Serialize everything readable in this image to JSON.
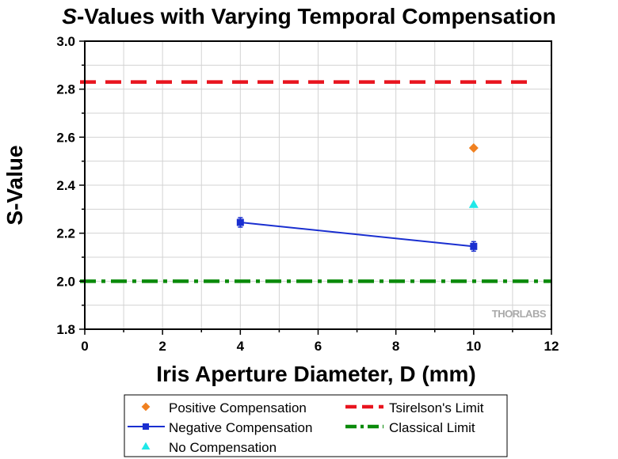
{
  "chart_data": {
    "type": "scatter",
    "title_italic": "S",
    "title_rest": "-Values with Varying Temporal Compensation",
    "xlabel": "Iris Aperture Diameter, D (mm)",
    "ylabel": "S-Value",
    "xlim": [
      0,
      12
    ],
    "ylim": [
      1.8,
      3.0
    ],
    "xticks": [
      "0",
      "2",
      "4",
      "6",
      "8",
      "10",
      "12"
    ],
    "yticks": [
      "1.8",
      "2.0",
      "2.2",
      "2.4",
      "2.6",
      "2.8",
      "3.0"
    ],
    "grid": true,
    "legend_position": "bottom",
    "series": [
      {
        "name": "Positive Compensation",
        "marker": "diamond",
        "color": "#f08020",
        "line": false,
        "points": [
          {
            "x": 10,
            "y": 2.555
          }
        ]
      },
      {
        "name": "Negative Compensation",
        "marker": "square",
        "color": "#1a2fd0",
        "line": true,
        "points": [
          {
            "x": 4,
            "y": 2.245
          },
          {
            "x": 10,
            "y": 2.145
          }
        ]
      },
      {
        "name": "No Compensation",
        "marker": "triangle",
        "color": "#1fe8e8",
        "line": false,
        "points": [
          {
            "x": 10,
            "y": 2.32
          }
        ]
      }
    ],
    "reference_lines": [
      {
        "name": "Tsirelson's Limit",
        "y": 2.83,
        "color": "#e8141e",
        "style": "dashed"
      },
      {
        "name": "Classical Limit",
        "y": 2.0,
        "color": "#0a8a0a",
        "style": "dash-dot"
      }
    ],
    "watermark": "THORLABS"
  }
}
